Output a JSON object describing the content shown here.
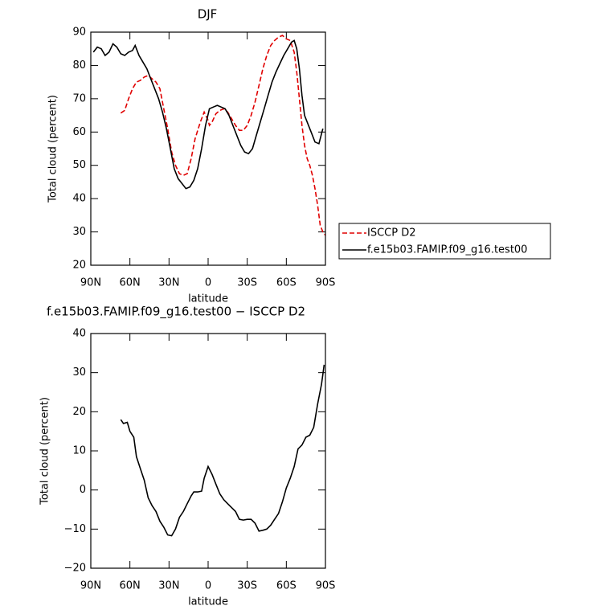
{
  "chart_data": [
    {
      "type": "line",
      "title": "DJF",
      "xlabel": "latitude",
      "ylabel": "Total cloud (percent)",
      "xlim": [
        90,
        -90
      ],
      "xticks": [
        {
          "value": 90,
          "label": "90N"
        },
        {
          "value": 60,
          "label": "60N"
        },
        {
          "value": 30,
          "label": "30N"
        },
        0,
        {
          "value": -30,
          "label": "30S"
        },
        {
          "value": -60,
          "label": "60S"
        },
        {
          "value": -90,
          "label": "90S"
        }
      ],
      "ylim": [
        20,
        90
      ],
      "yticks": [
        20,
        30,
        40,
        50,
        60,
        70,
        80,
        90
      ],
      "legend": "right",
      "series": [
        {
          "name": "ISCCP D2",
          "color": "#e00000",
          "line_style": "dashed",
          "x": [
            67,
            64,
            61,
            58,
            55,
            52,
            49,
            46,
            43,
            40,
            37,
            34,
            31,
            28,
            25,
            22,
            19,
            16,
            13,
            10,
            6,
            3,
            0,
            -1,
            -3,
            -6,
            -9,
            -12,
            -15,
            -18,
            -21,
            -24,
            -27,
            -30,
            -33,
            -36,
            -39,
            -42,
            -45,
            -48,
            -51,
            -54,
            -57,
            -60,
            -63,
            -66,
            -68,
            -70,
            -72,
            -74,
            -76,
            -78,
            -80,
            -82,
            -84,
            -86,
            -88,
            -90
          ],
          "values": [
            65.7,
            66.5,
            70,
            73,
            75,
            75.5,
            76.5,
            77,
            76,
            75,
            73,
            67,
            61,
            54,
            50,
            47.5,
            47,
            47.5,
            52,
            58,
            63,
            66,
            63.5,
            62,
            63,
            65.5,
            66.5,
            67,
            66,
            64,
            62,
            60.5,
            60.5,
            62,
            65,
            69,
            74,
            79,
            83,
            86,
            87.5,
            88.5,
            89,
            88,
            87.5,
            84,
            78,
            70,
            62,
            56,
            52,
            50,
            47,
            43,
            38,
            32,
            30,
            29
          ]
        },
        {
          "name": "f.e15b03.FAMIP.f09_g16.test00",
          "color": "#000000",
          "line_style": "solid",
          "x": [
            88,
            85,
            82,
            79,
            76,
            73,
            70,
            67,
            64,
            61,
            58,
            56,
            53,
            50,
            47,
            44,
            41,
            38,
            35,
            32,
            29,
            26,
            23,
            20,
            17,
            14,
            11,
            8,
            5,
            2,
            -1,
            -4,
            -7,
            -10,
            -13,
            -16,
            -19,
            -22,
            -25,
            -28,
            -31,
            -34,
            -37,
            -40,
            -43,
            -46,
            -49,
            -52,
            -55,
            -58,
            -61,
            -64,
            -66,
            -68,
            -70,
            -72,
            -74,
            -76,
            -79,
            -82,
            -85,
            -88
          ],
          "values": [
            84,
            85.5,
            85,
            83,
            84,
            86.5,
            85.5,
            83.5,
            83,
            84,
            84.5,
            86,
            83,
            81,
            79,
            76,
            73,
            70,
            66,
            61,
            55,
            49,
            46,
            44.5,
            43,
            43.5,
            45.5,
            49,
            55,
            62,
            67,
            67.5,
            68,
            67.5,
            67,
            65,
            62,
            59,
            56,
            54,
            53.5,
            55,
            59,
            63,
            67,
            71,
            75,
            78,
            80.5,
            83,
            85,
            87,
            87.5,
            85,
            79,
            71,
            65,
            63,
            60,
            57,
            56.5,
            61
          ]
        }
      ]
    },
    {
      "type": "line",
      "title": "f.e15b03.FAMIP.f09_g16.test00 − ISCCP D2",
      "xlabel": "latitude",
      "ylabel": "Total cloud (percent)",
      "xlim": [
        90,
        -90
      ],
      "xticks": [
        {
          "value": 90,
          "label": "90N"
        },
        {
          "value": 60,
          "label": "60N"
        },
        {
          "value": 30,
          "label": "30N"
        },
        0,
        {
          "value": -30,
          "label": "30S"
        },
        {
          "value": -60,
          "label": "60S"
        },
        {
          "value": -90,
          "label": "90S"
        }
      ],
      "ylim": [
        -20,
        40
      ],
      "yticks": [
        {
          "value": -20,
          "label": "−20"
        },
        {
          "value": -10,
          "label": "−10"
        },
        0,
        10,
        20,
        30,
        40
      ],
      "series": [
        {
          "color": "#000000",
          "line_style": "solid",
          "x": [
            67,
            65,
            62,
            60,
            57,
            55,
            52,
            49,
            46,
            43,
            40,
            37,
            34,
            31,
            28,
            25,
            22,
            19,
            16,
            13,
            11,
            8,
            5,
            3,
            0,
            -3,
            -6,
            -9,
            -12,
            -15,
            -18,
            -21,
            -24,
            -27,
            -30,
            -33,
            -36,
            -39,
            -42,
            -45,
            -48,
            -51,
            -54,
            -57,
            -60,
            -63,
            -66,
            -69,
            -72,
            -75,
            -78,
            -81,
            -84,
            -87,
            -89
          ],
          "values": [
            18,
            17,
            17.3,
            15,
            13.5,
            8.5,
            5.5,
            2.5,
            -2,
            -4,
            -5.5,
            -8,
            -9.5,
            -11.5,
            -11.7,
            -10,
            -7,
            -5.5,
            -3.5,
            -1.5,
            -0.5,
            -0.5,
            -0.3,
            3,
            6,
            4,
            1.5,
            -1,
            -2.5,
            -3.5,
            -4.5,
            -5.5,
            -7.5,
            -7.7,
            -7.5,
            -7.5,
            -8.5,
            -10.5,
            -10.3,
            -10,
            -9,
            -7.5,
            -6,
            -3,
            0.5,
            3,
            6,
            10.5,
            11.5,
            13.5,
            14,
            16,
            22,
            27,
            32
          ]
        }
      ]
    }
  ]
}
